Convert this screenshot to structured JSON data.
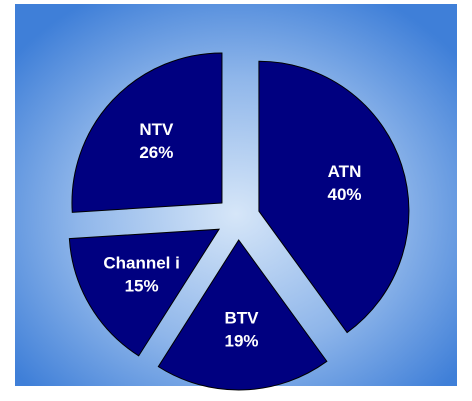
{
  "chart_data": {
    "type": "pie",
    "categories": [
      "ATN",
      "BTV",
      "Channel i",
      "NTV"
    ],
    "values": [
      40,
      19,
      15,
      26
    ],
    "value_labels": [
      "40%",
      "19%",
      "15%",
      "26%"
    ],
    "color": "#000080"
  }
}
